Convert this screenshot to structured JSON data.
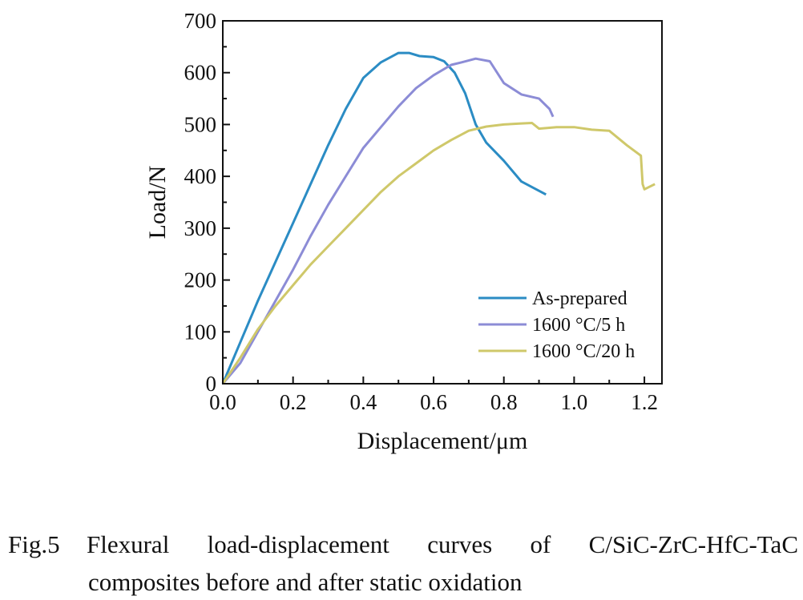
{
  "chart_data": {
    "type": "line",
    "xlabel": "Displacement/μm",
    "ylabel": "Load/N",
    "xlim": [
      0,
      1.25
    ],
    "ylim": [
      0,
      700
    ],
    "xticks": [
      "0.0",
      "0.2",
      "0.4",
      "0.6",
      "0.8",
      "1.0",
      "1.2"
    ],
    "yticks": [
      "0",
      "100",
      "200",
      "300",
      "400",
      "500",
      "600",
      "700"
    ],
    "legend": "lower-right",
    "grid": false,
    "series": [
      {
        "name": "As-prepared",
        "color": "#2b8cc4",
        "x": [
          0,
          0.05,
          0.1,
          0.15,
          0.2,
          0.25,
          0.3,
          0.35,
          0.4,
          0.45,
          0.5,
          0.53,
          0.56,
          0.6,
          0.63,
          0.66,
          0.69,
          0.72,
          0.75,
          0.8,
          0.85,
          0.92
        ],
        "y": [
          0,
          80,
          160,
          235,
          310,
          385,
          460,
          530,
          590,
          620,
          638,
          638,
          632,
          630,
          622,
          600,
          560,
          500,
          465,
          430,
          390,
          365
        ]
      },
      {
        "name": "1600 °C/5 h",
        "color": "#8c8cd6",
        "x": [
          0,
          0.05,
          0.1,
          0.15,
          0.2,
          0.25,
          0.3,
          0.35,
          0.4,
          0.45,
          0.5,
          0.55,
          0.6,
          0.65,
          0.68,
          0.72,
          0.76,
          0.8,
          0.85,
          0.9,
          0.93,
          0.94
        ],
        "y": [
          0,
          40,
          100,
          160,
          220,
          285,
          345,
          400,
          455,
          495,
          535,
          570,
          595,
          615,
          620,
          627,
          622,
          580,
          558,
          550,
          530,
          515
        ]
      },
      {
        "name": "1600 °C/20 h",
        "color": "#cfc86a",
        "x": [
          0,
          0.05,
          0.1,
          0.15,
          0.2,
          0.25,
          0.3,
          0.35,
          0.4,
          0.45,
          0.5,
          0.55,
          0.6,
          0.65,
          0.7,
          0.75,
          0.8,
          0.85,
          0.88,
          0.9,
          0.95,
          1.0,
          1.05,
          1.1,
          1.15,
          1.19,
          1.195,
          1.2,
          1.23
        ],
        "y": [
          0,
          50,
          105,
          150,
          190,
          230,
          265,
          300,
          335,
          370,
          400,
          425,
          450,
          470,
          488,
          496,
          500,
          502,
          503,
          492,
          495,
          495,
          490,
          488,
          460,
          440,
          385,
          375,
          385
        ]
      }
    ]
  },
  "caption": {
    "label": "Fig.5",
    "line1": "Flexural load-displacement curves of C/SiC-ZrC-HfC-TaC",
    "line2": "composites before and after static oxidation"
  }
}
